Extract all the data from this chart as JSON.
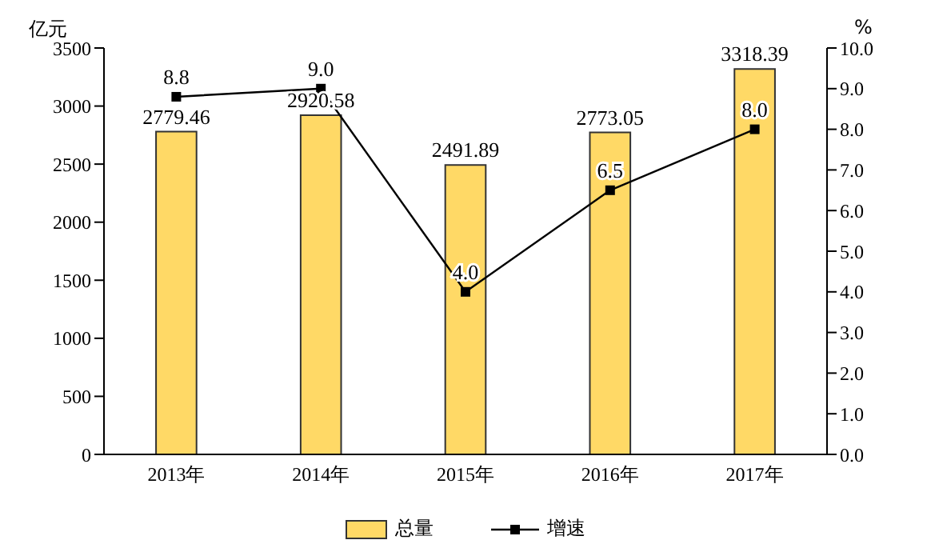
{
  "chart_data": {
    "type": "bar",
    "ylabel": "亿元",
    "y2label": "%",
    "categories": [
      "2013年",
      "2014年",
      "2015年",
      "2016年",
      "2017年"
    ],
    "series": [
      {
        "name": "总量",
        "color": "#ffd966",
        "values": [
          2779.46,
          2920.58,
          2491.89,
          2773.05,
          3318.39
        ],
        "value_labels": [
          "2779.46",
          "2920.58",
          "2491.89",
          "2773.05",
          "3318.39"
        ]
      },
      {
        "name": "增速",
        "type": "line",
        "axis": "y2",
        "color": "#000000",
        "values": [
          8.8,
          9.0,
          4.0,
          6.5,
          8.0
        ],
        "value_labels": [
          "8.8",
          "9.0",
          "4.0",
          "6.5",
          "8.0"
        ]
      }
    ],
    "ylim": [
      0,
      3500
    ],
    "yticks": [
      0,
      500,
      1000,
      1500,
      2000,
      2500,
      3000,
      3500
    ],
    "y2lim": [
      0,
      10
    ],
    "y2ticks": [
      {
        "value": 0,
        "label": "0.0"
      },
      {
        "value": 1,
        "label": "1.0"
      },
      {
        "value": 2,
        "label": "2.0"
      },
      {
        "value": 3,
        "label": "3.0"
      },
      {
        "value": 4,
        "label": "4.0"
      },
      {
        "value": 5,
        "label": "5.0"
      },
      {
        "value": 6,
        "label": "6.0"
      },
      {
        "value": 7,
        "label": "7.0"
      },
      {
        "value": 8,
        "label": "8.0"
      },
      {
        "value": 9,
        "label": "9.0"
      },
      {
        "value": 10,
        "label": "10.0"
      }
    ],
    "grid": false,
    "legend": "bottom",
    "marker": "square",
    "line_style": "solid"
  }
}
